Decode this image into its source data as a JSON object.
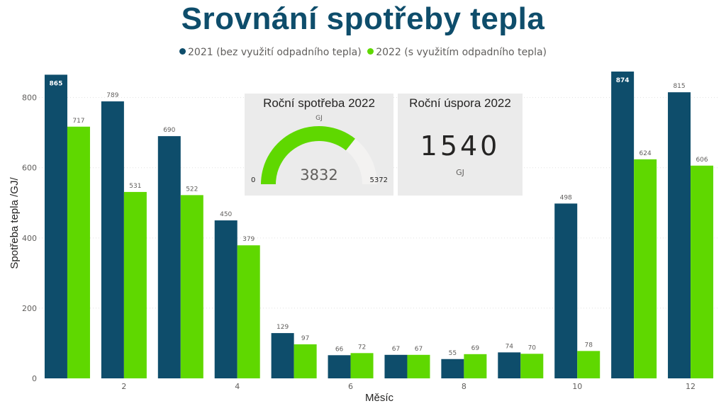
{
  "title": "Srovnání spotřeby tepla",
  "legend": [
    {
      "label": "2021 (bez využití odpadního tepla)",
      "color": "#0e4d6b"
    },
    {
      "label": "2022 (s využitím odpadního tepla)",
      "color": "#5fd800"
    }
  ],
  "chart_data": {
    "type": "bar",
    "xlabel": "Měsíc",
    "ylabel": "Spotřeba tepla /GJ/",
    "ylim": [
      0,
      880
    ],
    "yticks": [
      0,
      200,
      400,
      600,
      800
    ],
    "xtick_labels": [
      "2",
      "4",
      "6",
      "8",
      "10",
      "12"
    ],
    "categories": [
      1,
      2,
      3,
      4,
      5,
      6,
      7,
      8,
      9,
      10,
      11,
      12
    ],
    "grid": true,
    "legend_position": "top-center",
    "series": [
      {
        "name": "2021 (bez využití odpadního tepla)",
        "color": "#0e4d6b",
        "values": [
          865,
          789,
          690,
          450,
          129,
          66,
          67,
          55,
          74,
          498,
          874,
          815
        ]
      },
      {
        "name": "2022 (s využitím odpadního tepla)",
        "color": "#5fd800",
        "values": [
          717,
          531,
          522,
          379,
          97,
          72,
          67,
          69,
          70,
          78,
          624,
          606
        ]
      }
    ]
  },
  "gauge": {
    "title": "Roční spotřeba 2022",
    "unit": "GJ",
    "value": 3832,
    "value_label": "3832",
    "min_label": "0",
    "max_label": "5372",
    "min": 0,
    "max": 5372,
    "fill_color": "#5fd800",
    "track_color": "#f3f2f1"
  },
  "kpi": {
    "title": "Roční úspora 2022",
    "value": "1540",
    "unit": "GJ"
  }
}
